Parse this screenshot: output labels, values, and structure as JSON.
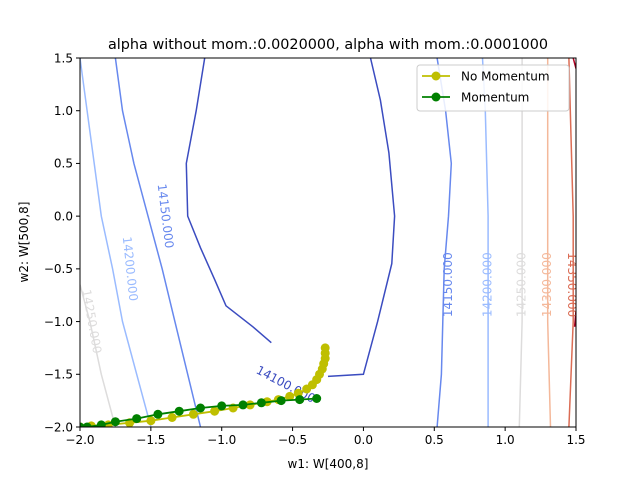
{
  "chart_data": {
    "type": "line",
    "title": "alpha without mom.:0.0020000, alpha with mom.:0.0001000",
    "xlabel": "w1: W[400,8]",
    "ylabel": "w2: W[500,8]",
    "xlim": [
      -2.0,
      1.5
    ],
    "ylim": [
      -2.0,
      1.5
    ],
    "xticks": [
      -2.0,
      -1.5,
      -1.0,
      -0.5,
      0.0,
      0.5,
      1.0,
      1.5
    ],
    "xtick_labels": [
      "−2.0",
      "−1.5",
      "−1.0",
      "−0.5",
      "0.0",
      "0.5",
      "1.0",
      "1.5"
    ],
    "yticks": [
      -2.0,
      -1.5,
      -1.0,
      -0.5,
      0.0,
      0.5,
      1.0,
      1.5
    ],
    "ytick_labels": [
      "−2.0",
      "−1.5",
      "−1.0",
      "−0.5",
      "0.0",
      "0.5",
      "1.0",
      "1.5"
    ],
    "grid": false,
    "legend_position": "top-right",
    "contours": [
      {
        "level_label": "14100.000",
        "color": "#3b4cc0",
        "curves": [
          [
            [
              -0.65,
              -1.2
            ],
            [
              -0.78,
              -1.05
            ],
            [
              -0.97,
              -0.85
            ],
            [
              -1.05,
              -0.6
            ],
            [
              -1.15,
              -0.3
            ],
            [
              -1.24,
              0.0
            ],
            [
              -1.25,
              0.5
            ],
            [
              -1.18,
              1.0
            ],
            [
              -1.12,
              1.5
            ]
          ],
          [
            [
              0.05,
              1.5
            ],
            [
              0.12,
              1.1
            ],
            [
              0.18,
              0.6
            ],
            [
              0.22,
              0.0
            ],
            [
              0.2,
              -0.45
            ],
            [
              0.1,
              -1.0
            ],
            [
              0.0,
              -1.5
            ],
            [
              -0.25,
              -1.52
            ]
          ]
        ]
      },
      {
        "level_label": "14150.000",
        "color": "#6788ee",
        "curves": [
          [
            [
              -1.15,
              -2.0
            ],
            [
              -1.24,
              -1.5
            ],
            [
              -1.33,
              -1.0
            ],
            [
              -1.42,
              -0.5
            ],
            [
              -1.52,
              0.0
            ],
            [
              -1.62,
              0.5
            ],
            [
              -1.7,
              1.0
            ],
            [
              -1.75,
              1.5
            ]
          ],
          [
            [
              0.52,
              -2.0
            ],
            [
              0.55,
              -1.5
            ],
            [
              0.56,
              -1.0
            ],
            [
              0.57,
              -0.5
            ],
            [
              0.6,
              0.0
            ],
            [
              0.62,
              0.5
            ],
            [
              0.58,
              1.0
            ],
            [
              0.52,
              1.5
            ]
          ]
        ]
      },
      {
        "level_label": "14200.000",
        "color": "#9abbff",
        "curves": [
          [
            [
              -1.5,
              -2.0
            ],
            [
              -1.6,
              -1.5
            ],
            [
              -1.7,
              -1.0
            ],
            [
              -1.77,
              -0.5
            ],
            [
              -1.85,
              0.0
            ],
            [
              -1.9,
              0.5
            ],
            [
              -1.95,
              1.0
            ],
            [
              -2.0,
              1.5
            ]
          ],
          [
            [
              0.88,
              -2.0
            ],
            [
              0.88,
              -1.0
            ],
            [
              0.88,
              0.0
            ],
            [
              0.86,
              1.0
            ],
            [
              0.84,
              1.5
            ]
          ]
        ]
      },
      {
        "level_label": "14250.000",
        "color": "#dddcdc",
        "curves": [
          [
            [
              -1.75,
              -2.0
            ],
            [
              -1.85,
              -1.5
            ],
            [
              -1.93,
              -1.0
            ],
            [
              -2.0,
              -0.65
            ]
          ],
          [
            [
              1.1,
              -2.0
            ],
            [
              1.12,
              -1.0
            ],
            [
              1.12,
              0.0
            ],
            [
              1.12,
              1.0
            ],
            [
              1.12,
              1.5
            ]
          ]
        ]
      },
      {
        "level_label": "14300.000",
        "color": "#f4b89a",
        "curves": [
          [
            [
              1.32,
              -2.0
            ],
            [
              1.3,
              -1.0
            ],
            [
              1.3,
              0.0
            ],
            [
              1.3,
              1.0
            ],
            [
              1.3,
              1.5
            ]
          ]
        ]
      },
      {
        "level_label": "14350.000",
        "color": "#db6c54",
        "curves": [
          [
            [
              1.45,
              -2.0
            ],
            [
              1.48,
              -1.0
            ],
            [
              1.48,
              0.0
            ],
            [
              1.46,
              1.0
            ],
            [
              1.45,
              1.5
            ]
          ]
        ]
      },
      {
        "level_label": "",
        "color": "#b40426",
        "curves": [
          [
            [
              1.5,
              1.4
            ],
            [
              1.48,
              1.5
            ]
          ],
          [
            [
              1.5,
              -0.9
            ],
            [
              1.49,
              -1.05
            ]
          ]
        ]
      }
    ],
    "contour_labels": [
      {
        "text": "14100.000",
        "x": -0.55,
        "y": -1.6,
        "rotation": 28,
        "color": "#3b4cc0"
      },
      {
        "text": "14150.000",
        "x": -1.4,
        "y": 0.0,
        "rotation": 83,
        "color": "#6788ee"
      },
      {
        "text": "14150.000",
        "x": 0.6,
        "y": -0.65,
        "rotation": -90,
        "color": "#6788ee"
      },
      {
        "text": "14200.000",
        "x": -1.65,
        "y": -0.5,
        "rotation": 84,
        "color": "#9abbff"
      },
      {
        "text": "14200.000",
        "x": 0.88,
        "y": -0.65,
        "rotation": -90,
        "color": "#9abbff"
      },
      {
        "text": "14250.000",
        "x": -1.92,
        "y": -1.0,
        "rotation": 80,
        "color": "#dddcdc"
      },
      {
        "text": "14250.000",
        "x": 1.12,
        "y": -0.65,
        "rotation": -90,
        "color": "#dddcdc"
      },
      {
        "text": "14300.000",
        "x": 1.3,
        "y": -0.65,
        "rotation": -90,
        "color": "#f4b89a"
      },
      {
        "text": "14350.000",
        "x": 1.47,
        "y": -0.65,
        "rotation": 90,
        "color": "#db6c54"
      }
    ],
    "series": [
      {
        "name": "No Momentum",
        "color": "#bfbf00",
        "points": [
          [
            -0.27,
            -1.25
          ],
          [
            -0.27,
            -1.3
          ],
          [
            -0.27,
            -1.35
          ],
          [
            -0.28,
            -1.4
          ],
          [
            -0.29,
            -1.45
          ],
          [
            -0.31,
            -1.5
          ],
          [
            -0.33,
            -1.55
          ],
          [
            -0.36,
            -1.6
          ],
          [
            -0.4,
            -1.64
          ],
          [
            -0.46,
            -1.68
          ],
          [
            -0.52,
            -1.71
          ],
          [
            -0.6,
            -1.74
          ],
          [
            -0.68,
            -1.76
          ],
          [
            -0.8,
            -1.79
          ],
          [
            -0.92,
            -1.82
          ],
          [
            -1.05,
            -1.85
          ],
          [
            -1.2,
            -1.88
          ],
          [
            -1.35,
            -1.91
          ],
          [
            -1.5,
            -1.94
          ],
          [
            -1.65,
            -1.96
          ],
          [
            -1.8,
            -1.98
          ],
          [
            -1.92,
            -1.99
          ],
          [
            -2.0,
            -2.0
          ]
        ]
      },
      {
        "name": "Momentum",
        "color": "#008000",
        "points": [
          [
            -0.33,
            -1.73
          ],
          [
            -0.45,
            -1.74
          ],
          [
            -0.58,
            -1.75
          ],
          [
            -0.72,
            -1.77
          ],
          [
            -0.85,
            -1.79
          ],
          [
            -1.0,
            -1.8
          ],
          [
            -1.15,
            -1.82
          ],
          [
            -1.3,
            -1.85
          ],
          [
            -1.45,
            -1.88
          ],
          [
            -1.6,
            -1.92
          ],
          [
            -1.75,
            -1.95
          ],
          [
            -1.85,
            -1.98
          ],
          [
            -1.95,
            -2.0
          ],
          [
            -2.0,
            -2.0
          ]
        ]
      }
    ]
  },
  "legend": {
    "items": [
      {
        "label": "No Momentum",
        "color": "#bfbf00"
      },
      {
        "label": "Momentum",
        "color": "#008000"
      }
    ]
  }
}
